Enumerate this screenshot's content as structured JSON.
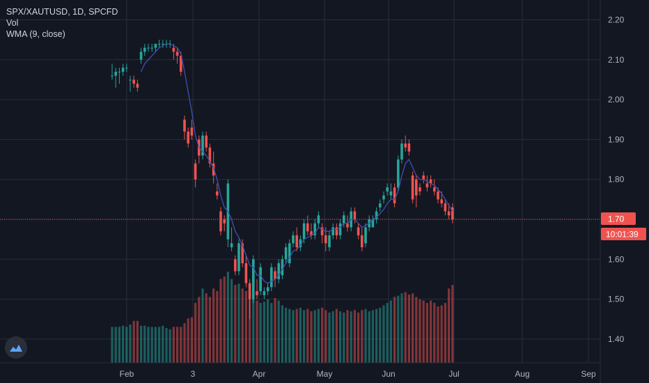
{
  "legend": {
    "symbol_line": "SPX/XAUTUSD, 1D, SPCFD",
    "volume_line": "Vol",
    "wma_line": "WMA (9, close)"
  },
  "price_label": "1.70",
  "countdown_label": "10:01:39",
  "colors": {
    "background": "#131722",
    "grid": "#2a2e39",
    "up": "#26a69a",
    "down": "#ef5350",
    "wma": "#3f51b5",
    "price_badge": "#ef5350"
  },
  "icons": {
    "logo": "tradingview-cloud-icon"
  },
  "chart_data": {
    "type": "candlestick",
    "title": "SPX/XAUTUSD",
    "y_ticks": [
      "2.20",
      "2.10",
      "2.00",
      "1.90",
      "1.80",
      "1.70",
      "1.60",
      "1.50",
      "1.40"
    ],
    "x_ticks": [
      "Feb",
      "3",
      "Apr",
      "May",
      "Jun",
      "Jul",
      "Aug",
      "Sep"
    ],
    "ylim": [
      1.33,
      2.235
    ],
    "last_price": 1.7,
    "candles": [
      [
        0,
        2.06,
        2.09,
        2.05,
        2.06,
        30
      ],
      [
        1,
        2.06,
        2.08,
        2.03,
        2.07,
        30
      ],
      [
        2,
        2.07,
        2.08,
        2.04,
        2.07,
        30
      ],
      [
        3,
        2.07,
        2.09,
        2.06,
        2.08,
        31
      ],
      [
        4,
        2.08,
        2.09,
        2.07,
        2.08,
        30
      ],
      [
        5,
        2.05,
        2.06,
        2.02,
        2.05,
        32
      ],
      [
        6,
        2.05,
        2.06,
        2.03,
        2.04,
        35
      ],
      [
        7,
        2.04,
        2.05,
        2.02,
        2.03,
        35
      ],
      [
        8,
        2.1,
        2.13,
        2.09,
        2.12,
        31
      ],
      [
        9,
        2.12,
        2.14,
        2.11,
        2.13,
        31
      ],
      [
        10,
        2.13,
        2.14,
        2.12,
        2.13,
        30
      ],
      [
        11,
        2.13,
        2.14,
        2.12,
        2.13,
        30
      ],
      [
        12,
        2.13,
        2.14,
        2.12,
        2.14,
        30
      ],
      [
        13,
        2.14,
        2.15,
        2.13,
        2.14,
        30
      ],
      [
        14,
        2.14,
        2.15,
        2.13,
        2.14,
        31
      ],
      [
        15,
        2.14,
        2.15,
        2.13,
        2.14,
        29
      ],
      [
        16,
        2.14,
        2.15,
        2.13,
        2.14,
        28
      ],
      [
        17,
        2.13,
        2.14,
        2.1,
        2.12,
        30
      ],
      [
        18,
        2.12,
        2.13,
        2.09,
        2.11,
        30
      ],
      [
        19,
        2.11,
        2.12,
        2.06,
        2.07,
        30
      ],
      [
        20,
        1.95,
        1.96,
        1.9,
        1.92,
        33
      ],
      [
        21,
        1.92,
        1.93,
        1.88,
        1.89,
        37
      ],
      [
        22,
        1.93,
        1.95,
        1.9,
        1.91,
        38
      ],
      [
        23,
        1.84,
        1.85,
        1.78,
        1.8,
        50
      ],
      [
        24,
        1.9,
        1.91,
        1.84,
        1.86,
        55
      ],
      [
        25,
        1.86,
        1.92,
        1.85,
        1.91,
        62
      ],
      [
        26,
        1.91,
        1.92,
        1.87,
        1.88,
        58
      ],
      [
        27,
        1.88,
        1.89,
        1.83,
        1.84,
        55
      ],
      [
        28,
        1.84,
        1.87,
        1.79,
        1.81,
        62
      ],
      [
        29,
        1.77,
        1.79,
        1.75,
        1.76,
        60
      ],
      [
        30,
        1.72,
        1.73,
        1.66,
        1.67,
        70
      ],
      [
        31,
        1.7,
        1.71,
        1.67,
        1.69,
        72
      ],
      [
        32,
        1.65,
        1.8,
        1.63,
        1.79,
        76
      ],
      [
        33,
        1.63,
        1.68,
        1.62,
        1.64,
        70
      ],
      [
        34,
        1.6,
        1.61,
        1.56,
        1.57,
        65
      ],
      [
        35,
        1.57,
        1.65,
        1.56,
        1.64,
        66
      ],
      [
        36,
        1.64,
        1.65,
        1.58,
        1.59,
        62
      ],
      [
        37,
        1.59,
        1.61,
        1.53,
        1.54,
        60
      ],
      [
        38,
        1.54,
        1.55,
        1.45,
        1.5,
        58
      ],
      [
        39,
        1.5,
        1.61,
        1.49,
        1.6,
        56
      ],
      [
        40,
        1.52,
        1.55,
        1.5,
        1.51,
        52
      ],
      [
        41,
        1.52,
        1.59,
        1.51,
        1.58,
        50
      ],
      [
        42,
        1.51,
        1.53,
        1.5,
        1.52,
        51
      ],
      [
        43,
        1.52,
        1.54,
        1.51,
        1.53,
        53
      ],
      [
        44,
        1.53,
        1.59,
        1.52,
        1.58,
        50
      ],
      [
        45,
        1.57,
        1.58,
        1.53,
        1.55,
        54
      ],
      [
        46,
        1.55,
        1.6,
        1.54,
        1.59,
        52
      ],
      [
        47,
        1.56,
        1.61,
        1.55,
        1.6,
        48
      ],
      [
        48,
        1.6,
        1.64,
        1.59,
        1.63,
        46
      ],
      [
        49,
        1.59,
        1.65,
        1.58,
        1.64,
        45
      ],
      [
        50,
        1.64,
        1.67,
        1.63,
        1.66,
        44
      ],
      [
        51,
        1.66,
        1.68,
        1.62,
        1.63,
        45
      ],
      [
        52,
        1.63,
        1.66,
        1.62,
        1.65,
        46
      ],
      [
        53,
        1.65,
        1.7,
        1.64,
        1.69,
        44
      ],
      [
        54,
        1.69,
        1.71,
        1.66,
        1.67,
        45
      ],
      [
        55,
        1.67,
        1.69,
        1.65,
        1.66,
        43
      ],
      [
        56,
        1.66,
        1.7,
        1.65,
        1.69,
        44
      ],
      [
        57,
        1.69,
        1.72,
        1.68,
        1.71,
        45
      ],
      [
        58,
        1.68,
        1.69,
        1.64,
        1.66,
        46
      ],
      [
        59,
        1.66,
        1.68,
        1.62,
        1.64,
        44
      ],
      [
        60,
        1.63,
        1.67,
        1.62,
        1.66,
        42
      ],
      [
        61,
        1.66,
        1.69,
        1.65,
        1.68,
        43
      ],
      [
        62,
        1.68,
        1.69,
        1.65,
        1.66,
        45
      ],
      [
        63,
        1.66,
        1.7,
        1.65,
        1.69,
        43
      ],
      [
        64,
        1.69,
        1.72,
        1.68,
        1.71,
        42
      ],
      [
        65,
        1.69,
        1.71,
        1.67,
        1.68,
        44
      ],
      [
        66,
        1.68,
        1.73,
        1.67,
        1.72,
        43
      ],
      [
        67,
        1.72,
        1.73,
        1.69,
        1.7,
        44
      ],
      [
        68,
        1.68,
        1.69,
        1.65,
        1.66,
        42
      ],
      [
        69,
        1.66,
        1.68,
        1.62,
        1.63,
        44
      ],
      [
        70,
        1.64,
        1.69,
        1.63,
        1.68,
        45
      ],
      [
        71,
        1.68,
        1.71,
        1.67,
        1.7,
        43
      ],
      [
        72,
        1.68,
        1.71,
        1.68,
        1.7,
        44
      ],
      [
        73,
        1.7,
        1.73,
        1.69,
        1.72,
        45
      ],
      [
        74,
        1.73,
        1.75,
        1.72,
        1.74,
        46
      ],
      [
        75,
        1.75,
        1.77,
        1.74,
        1.76,
        48
      ],
      [
        76,
        1.77,
        1.79,
        1.76,
        1.78,
        50
      ],
      [
        77,
        1.76,
        1.79,
        1.75,
        1.77,
        52
      ],
      [
        78,
        1.78,
        1.79,
        1.73,
        1.74,
        55
      ],
      [
        79,
        1.78,
        1.86,
        1.77,
        1.85,
        56
      ],
      [
        80,
        1.85,
        1.9,
        1.84,
        1.89,
        58
      ],
      [
        81,
        1.89,
        1.91,
        1.87,
        1.88,
        59
      ],
      [
        82,
        1.89,
        1.9,
        1.86,
        1.87,
        57
      ],
      [
        83,
        1.81,
        1.82,
        1.74,
        1.75,
        58
      ],
      [
        84,
        1.8,
        1.81,
        1.73,
        1.76,
        55
      ],
      [
        85,
        1.78,
        1.79,
        1.76,
        1.77,
        53
      ],
      [
        86,
        1.81,
        1.82,
        1.79,
        1.8,
        52
      ],
      [
        87,
        1.79,
        1.81,
        1.77,
        1.78,
        50
      ],
      [
        88,
        1.8,
        1.81,
        1.78,
        1.79,
        52
      ],
      [
        89,
        1.78,
        1.8,
        1.76,
        1.77,
        50
      ],
      [
        90,
        1.77,
        1.78,
        1.74,
        1.75,
        47
      ],
      [
        91,
        1.75,
        1.77,
        1.73,
        1.74,
        48
      ],
      [
        92,
        1.74,
        1.75,
        1.71,
        1.72,
        50
      ],
      [
        93,
        1.72,
        1.74,
        1.7,
        1.71,
        62
      ],
      [
        94,
        1.73,
        1.74,
        1.69,
        1.7,
        65
      ]
    ],
    "wma": [
      [
        8,
        2.07
      ],
      [
        9,
        2.09
      ],
      [
        10,
        2.1
      ],
      [
        11,
        2.11
      ],
      [
        12,
        2.12
      ],
      [
        13,
        2.13
      ],
      [
        14,
        2.135
      ],
      [
        15,
        2.14
      ],
      [
        16,
        2.14
      ],
      [
        17,
        2.135
      ],
      [
        18,
        2.13
      ],
      [
        19,
        2.115
      ],
      [
        20,
        2.07
      ],
      [
        21,
        2.02
      ],
      [
        22,
        1.97
      ],
      [
        23,
        1.91
      ],
      [
        24,
        1.88
      ],
      [
        25,
        1.87
      ],
      [
        26,
        1.86
      ],
      [
        27,
        1.845
      ],
      [
        28,
        1.83
      ],
      [
        29,
        1.8
      ],
      [
        30,
        1.76
      ],
      [
        31,
        1.73
      ],
      [
        32,
        1.72
      ],
      [
        33,
        1.7
      ],
      [
        34,
        1.67
      ],
      [
        35,
        1.655
      ],
      [
        36,
        1.635
      ],
      [
        37,
        1.61
      ],
      [
        38,
        1.585
      ],
      [
        39,
        1.58
      ],
      [
        40,
        1.56
      ],
      [
        41,
        1.56
      ],
      [
        42,
        1.545
      ],
      [
        43,
        1.54
      ],
      [
        44,
        1.545
      ],
      [
        45,
        1.55
      ],
      [
        46,
        1.56
      ],
      [
        47,
        1.575
      ],
      [
        48,
        1.59
      ],
      [
        49,
        1.605
      ],
      [
        50,
        1.62
      ],
      [
        51,
        1.625
      ],
      [
        52,
        1.635
      ],
      [
        53,
        1.65
      ],
      [
        54,
        1.655
      ],
      [
        55,
        1.66
      ],
      [
        56,
        1.665
      ],
      [
        57,
        1.68
      ],
      [
        58,
        1.675
      ],
      [
        59,
        1.67
      ],
      [
        60,
        1.67
      ],
      [
        61,
        1.675
      ],
      [
        62,
        1.675
      ],
      [
        63,
        1.68
      ],
      [
        64,
        1.69
      ],
      [
        65,
        1.69
      ],
      [
        66,
        1.7
      ],
      [
        67,
        1.7
      ],
      [
        68,
        1.69
      ],
      [
        69,
        1.68
      ],
      [
        70,
        1.685
      ],
      [
        71,
        1.69
      ],
      [
        72,
        1.7
      ],
      [
        73,
        1.705
      ],
      [
        74,
        1.715
      ],
      [
        75,
        1.725
      ],
      [
        76,
        1.74
      ],
      [
        77,
        1.75
      ],
      [
        78,
        1.75
      ],
      [
        79,
        1.77
      ],
      [
        80,
        1.81
      ],
      [
        81,
        1.84
      ],
      [
        82,
        1.85
      ],
      [
        83,
        1.83
      ],
      [
        84,
        1.81
      ],
      [
        85,
        1.8
      ],
      [
        86,
        1.8
      ],
      [
        87,
        1.795
      ],
      [
        88,
        1.79
      ],
      [
        89,
        1.785
      ],
      [
        90,
        1.775
      ],
      [
        91,
        1.765
      ],
      [
        92,
        1.75
      ],
      [
        93,
        1.735
      ],
      [
        94,
        1.72
      ]
    ]
  }
}
